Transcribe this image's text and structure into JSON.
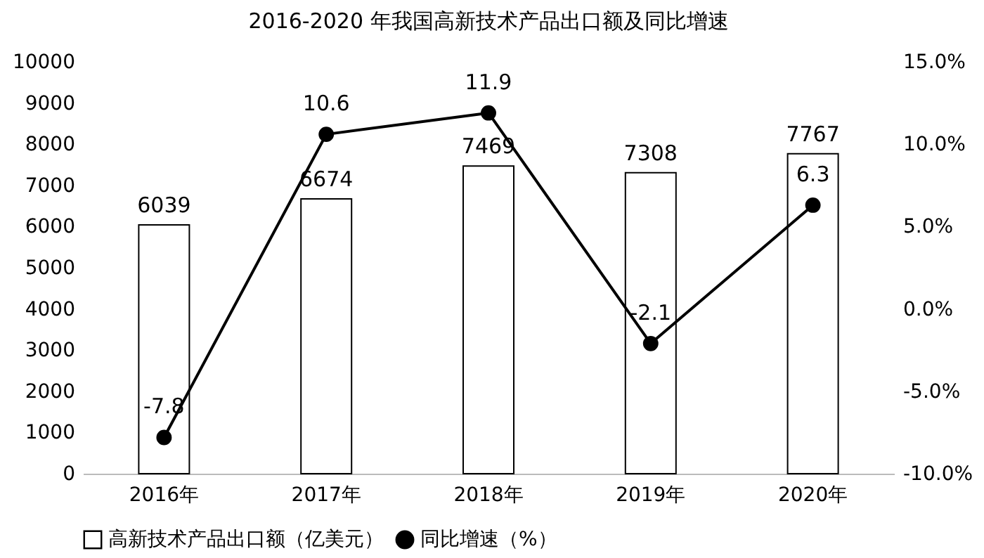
{
  "chart_data": {
    "type": "bar",
    "title": "2016-2020 年我国高新技术产品出口额及同比增速",
    "categories": [
      "2016年",
      "2017年",
      "2018年",
      "2019年",
      "2020年"
    ],
    "series": [
      {
        "name": "高新技术产品出口额（亿美元）",
        "axis": "y",
        "color": "#ffffff",
        "values": [
          6039,
          6674,
          7469,
          7308,
          7767
        ]
      },
      {
        "name": "同比增速（%）",
        "type": "line",
        "axis": "y2",
        "color": "#000000",
        "values": [
          -7.8,
          10.6,
          11.9,
          -2.1,
          6.3
        ]
      }
    ],
    "ylim": [
      0,
      10000
    ],
    "yticks": [
      0,
      1000,
      2000,
      3000,
      4000,
      5000,
      6000,
      7000,
      8000,
      9000,
      10000
    ],
    "y2lim": [
      -10,
      15
    ],
    "y2ticks": [
      {
        "value": -10,
        "label": "-10.0%"
      },
      {
        "value": -5,
        "label": "-5.0%"
      },
      {
        "value": 0,
        "label": "0.0%"
      },
      {
        "value": 5,
        "label": "5.0%"
      },
      {
        "value": 10,
        "label": "10.0%"
      },
      {
        "value": 15,
        "label": "15.0%"
      }
    ],
    "data_labels": true,
    "legend": "bottom",
    "marker": "circle",
    "line_style": "solid",
    "grid": false
  }
}
